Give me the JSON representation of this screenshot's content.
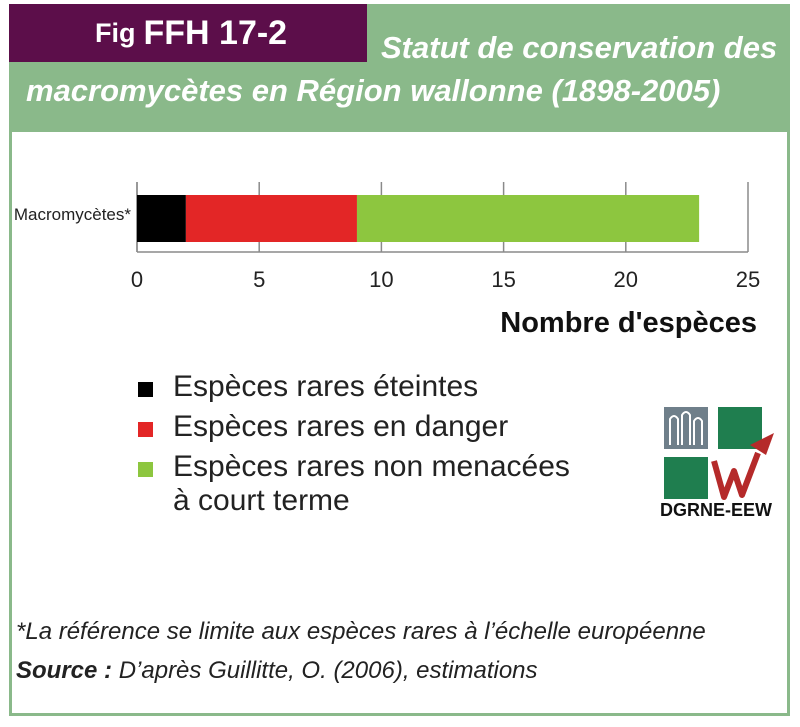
{
  "header": {
    "fig_prefix": "Fig",
    "fig_number": "FFH 17-2",
    "title_line1": "Statut de conservation des",
    "title_line2": "macromycètes en Région wallonne (1898-2005)"
  },
  "chart_data": {
    "type": "bar",
    "orientation": "horizontal",
    "stacked": true,
    "categories": [
      "Macromycètes*"
    ],
    "series": [
      {
        "name": "Espèces rares éteintes",
        "values": [
          2
        ],
        "color": "#000000"
      },
      {
        "name": "Espèces rares en danger",
        "values": [
          7
        ],
        "color": "#e32626"
      },
      {
        "name": "Espèces rares non menacées à court terme",
        "values": [
          14
        ],
        "color": "#8dc63f"
      }
    ],
    "xticks": [
      "0",
      "5",
      "10",
      "15",
      "20",
      "25"
    ],
    "xlim": [
      0,
      25
    ],
    "xlabel": "Nombre d'espèces",
    "grid": true,
    "legend_placement": "bottom-left"
  },
  "legend": {
    "items": [
      {
        "label": "Espèces rares éteintes",
        "color": "#000000"
      },
      {
        "label": "Espèces rares en danger",
        "color": "#e32626"
      },
      {
        "label": "Espèces rares non menacées à court terme",
        "color": "#8dc63f"
      }
    ]
  },
  "logo": {
    "caption": "DGRNE-EEW",
    "icon": "dgrne-eew-logo",
    "letter": "W"
  },
  "footnote": "*La référence se limite aux espèces rares à l’échelle européenne",
  "source": {
    "label": "Source :",
    "text": "D’après Guillitte, O. (2006), estimations"
  },
  "colors": {
    "frame": "#8ab98a",
    "tab": "#5c0e4a",
    "logo_green": "#1f7e4f",
    "logo_red": "#b52a2a"
  }
}
